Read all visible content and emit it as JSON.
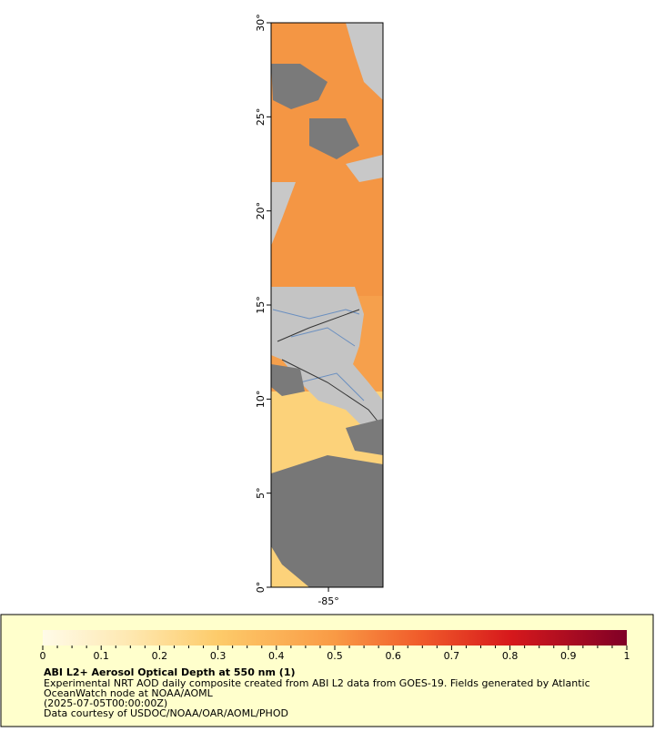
{
  "map": {
    "lat_ticks": [
      {
        "value": 0,
        "label": "0°"
      },
      {
        "value": 5,
        "label": "5°"
      },
      {
        "value": 10,
        "label": "10°"
      },
      {
        "value": 15,
        "label": "15°"
      },
      {
        "value": 20,
        "label": "20°"
      },
      {
        "value": 25,
        "label": "25°"
      },
      {
        "value": 30,
        "label": "30°"
      }
    ],
    "lon_ticks": [
      {
        "value": -85,
        "label": "-85°"
      }
    ],
    "ylim": [
      0,
      30
    ],
    "xlim": [
      -88.05,
      -82.1
    ]
  },
  "colorbar": {
    "lim": [
      0,
      1
    ],
    "ticks": [
      0,
      0.1,
      0.2,
      0.3,
      0.4,
      0.5,
      0.6,
      0.7,
      0.8,
      0.9,
      1
    ]
  },
  "caption": {
    "title": "ABI L2+ Aerosol Optical Depth at 550 nm (1)",
    "lines": [
      "Experimental NRT AOD daily composite created from ABI L2 data from GOES-19. Fields generated by Atlantic",
      "OceanWatch node at NOAA/AOML",
      "(2025-07-05T00:00:00Z)",
      "Data courtesy of USDOC/NOAA/OAR/AOML/PHOD"
    ]
  }
}
